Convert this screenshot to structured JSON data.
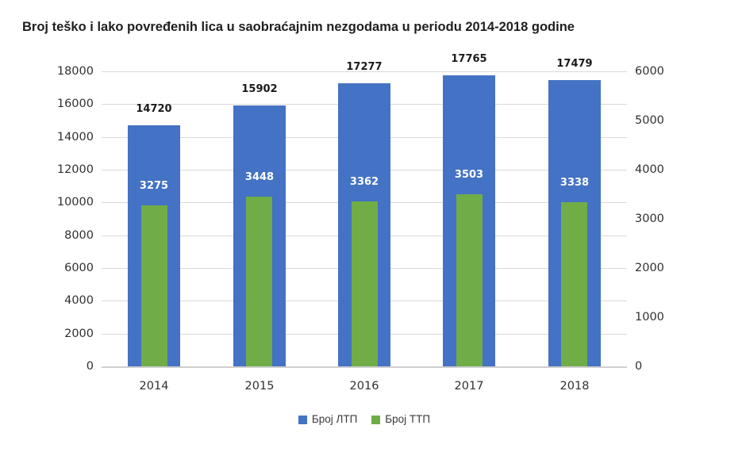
{
  "title": "Broj teško i lako povređenih lica u saobraćajnim nezgodama u periodu 2014-2018 godine",
  "chart_data": {
    "type": "bar",
    "title": "Broj teško i lako povređenih lica u saobraćajnim nezgodama u periodu 2014-2018 godine",
    "categories": [
      "2014",
      "2015",
      "2016",
      "2017",
      "2018"
    ],
    "series": [
      {
        "name": "Број ЛТП",
        "axis": "left",
        "color": "#4472c4",
        "label_color": "#1a1a1a",
        "values": [
          14720,
          15902,
          17277,
          17765,
          17479
        ]
      },
      {
        "name": "Број ТТП",
        "axis": "right",
        "color": "#70ad47",
        "label_color": "#ffffff",
        "values": [
          3275,
          3448,
          3362,
          3503,
          3338
        ]
      }
    ],
    "left_axis": {
      "min": 0,
      "max": 18000,
      "step": 2000,
      "ticks": [
        0,
        2000,
        4000,
        6000,
        8000,
        10000,
        12000,
        14000,
        16000,
        18000
      ]
    },
    "right_axis": {
      "min": 0,
      "max": 6000,
      "step": 1000,
      "ticks": [
        0,
        1000,
        2000,
        3000,
        4000,
        5000,
        6000
      ]
    },
    "grid": true,
    "data_labels": true,
    "legend_position": "bottom",
    "gridline_color": "#d9d9d9",
    "background_color": "#ffffff"
  }
}
